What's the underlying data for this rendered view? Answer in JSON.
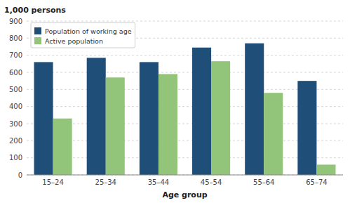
{
  "chart_data": {
    "type": "bar",
    "ylabel": "1,000 persons",
    "xlabel": "Age group",
    "categories": [
      "15–24",
      "25–34",
      "35–44",
      "45–54",
      "55–64",
      "65–74"
    ],
    "series": [
      {
        "name": "Population of working age",
        "color": "#1F4E79",
        "values": [
          660,
          685,
          660,
          745,
          770,
          550
        ]
      },
      {
        "name": "Active population",
        "color": "#92C47A",
        "values": [
          330,
          570,
          590,
          665,
          480,
          60
        ]
      }
    ],
    "ylim": [
      0,
      900
    ],
    "yticks": [
      0,
      100,
      200,
      300,
      400,
      500,
      600,
      700,
      800,
      900
    ],
    "grid": true,
    "legend": "upper left"
  }
}
